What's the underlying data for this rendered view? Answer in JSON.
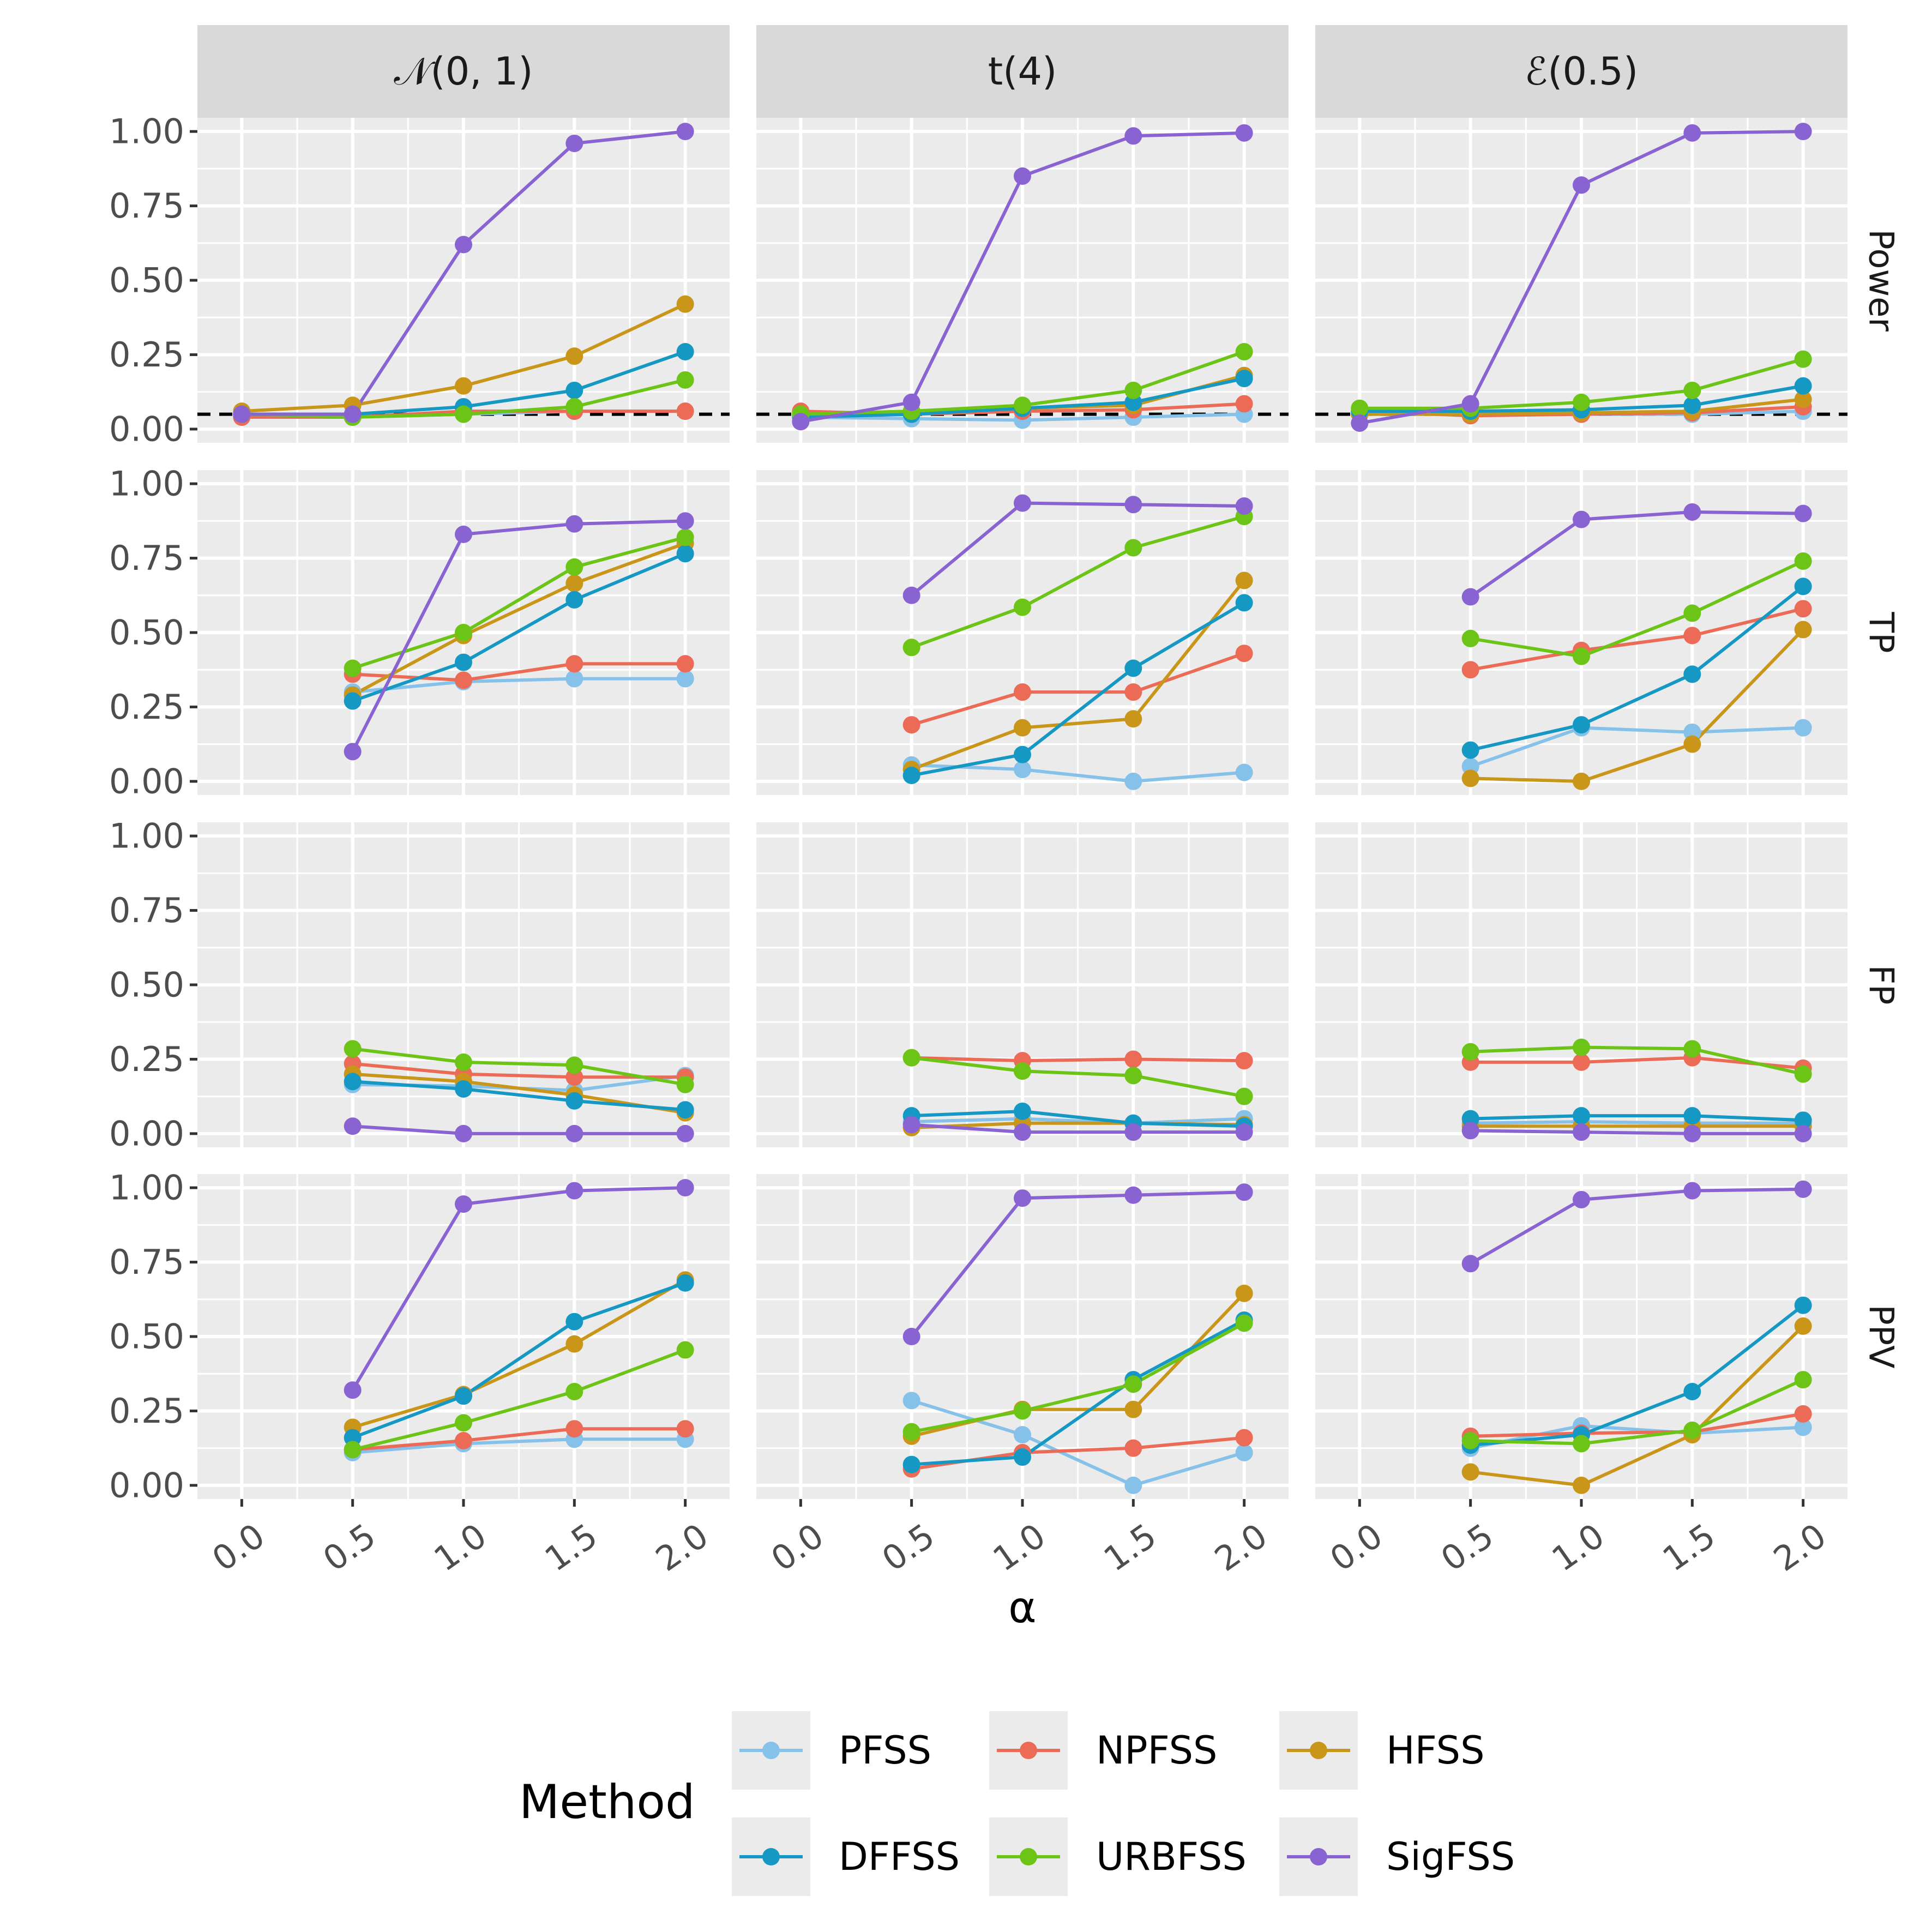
{
  "chart_data": {
    "type": "line",
    "xlabel": "α",
    "x": [
      0.0,
      0.5,
      1.0,
      1.5,
      2.0
    ],
    "x_tick_labels": [
      "0.0",
      "0.5",
      "1.0",
      "1.5",
      "2.0"
    ],
    "ylim": [
      0,
      1
    ],
    "y_tick_labels": [
      "0.00",
      "0.25",
      "0.50",
      "0.75",
      "1.00"
    ],
    "columns": [
      "𝒩(0, 1)",
      "t(4)",
      "ℰ(0.5)"
    ],
    "rows": [
      "Power",
      "TP",
      "FP",
      "PPV"
    ],
    "reference_line": {
      "row": "Power",
      "y": 0.05,
      "style": "dashed"
    },
    "legend": {
      "title": "Method",
      "position": "bottom"
    },
    "methods": [
      {
        "name": "PFSS",
        "color": "#85C1E9"
      },
      {
        "name": "NPFSS",
        "color": "#EC6B56"
      },
      {
        "name": "HFSS",
        "color": "#C9961A"
      },
      {
        "name": "DFFSS",
        "color": "#1598C3"
      },
      {
        "name": "URBFSS",
        "color": "#6CC417"
      },
      {
        "name": "SigFSS",
        "color": "#8A63D2"
      }
    ],
    "panels": {
      "Power": [
        {
          "PFSS": [
            0.05,
            0.04,
            0.05,
            0.06,
            0.06
          ],
          "NPFSS": [
            0.04,
            0.04,
            0.06,
            0.06,
            0.06
          ],
          "HFSS": [
            0.06,
            0.08,
            0.145,
            0.245,
            0.42
          ],
          "DFFSS": [
            0.05,
            0.05,
            0.075,
            0.13,
            0.26
          ],
          "URBFSS": [
            0.05,
            0.04,
            0.05,
            0.075,
            0.165
          ],
          "SigFSS": [
            0.05,
            0.05,
            0.62,
            0.96,
            1.0
          ]
        },
        {
          "PFSS": [
            0.04,
            0.035,
            0.03,
            0.04,
            0.05
          ],
          "NPFSS": [
            0.06,
            0.05,
            0.06,
            0.065,
            0.085
          ],
          "HFSS": [
            0.05,
            0.06,
            0.07,
            0.08,
            0.18
          ],
          "DFFSS": [
            0.04,
            0.05,
            0.07,
            0.09,
            0.17
          ],
          "URBFSS": [
            0.05,
            0.06,
            0.08,
            0.13,
            0.26
          ],
          "SigFSS": [
            0.025,
            0.09,
            0.85,
            0.985,
            0.995
          ]
        },
        {
          "PFSS": [
            0.05,
            0.05,
            0.05,
            0.05,
            0.06
          ],
          "NPFSS": [
            0.06,
            0.045,
            0.05,
            0.055,
            0.075
          ],
          "HFSS": [
            0.05,
            0.05,
            0.055,
            0.06,
            0.1
          ],
          "DFFSS": [
            0.06,
            0.06,
            0.065,
            0.08,
            0.145
          ],
          "URBFSS": [
            0.07,
            0.07,
            0.09,
            0.13,
            0.235
          ],
          "SigFSS": [
            0.02,
            0.085,
            0.82,
            0.995,
            1.0
          ]
        }
      ],
      "TP": [
        {
          "PFSS": [
            null,
            0.3,
            0.335,
            0.345,
            0.345
          ],
          "NPFSS": [
            null,
            0.36,
            0.34,
            0.395,
            0.395
          ],
          "HFSS": [
            null,
            0.29,
            0.49,
            0.665,
            0.8
          ],
          "DFFSS": [
            null,
            0.27,
            0.4,
            0.61,
            0.765
          ],
          "URBFSS": [
            null,
            0.38,
            0.5,
            0.72,
            0.82
          ],
          "SigFSS": [
            null,
            0.1,
            0.83,
            0.865,
            0.875
          ]
        },
        {
          "PFSS": [
            null,
            0.055,
            0.04,
            0.0,
            0.03
          ],
          "NPFSS": [
            null,
            0.19,
            0.3,
            0.3,
            0.43
          ],
          "HFSS": [
            null,
            0.04,
            0.18,
            0.21,
            0.675
          ],
          "DFFSS": [
            null,
            0.02,
            0.09,
            0.38,
            0.6
          ],
          "URBFSS": [
            null,
            0.45,
            0.585,
            0.785,
            0.89
          ],
          "SigFSS": [
            null,
            0.625,
            0.935,
            0.93,
            0.925
          ]
        },
        {
          "PFSS": [
            null,
            0.05,
            0.18,
            0.165,
            0.18
          ],
          "NPFSS": [
            null,
            0.375,
            0.44,
            0.49,
            0.58
          ],
          "HFSS": [
            null,
            0.01,
            0.0,
            0.125,
            0.51
          ],
          "DFFSS": [
            null,
            0.105,
            0.19,
            0.36,
            0.655
          ],
          "URBFSS": [
            null,
            0.48,
            0.42,
            0.565,
            0.74
          ],
          "SigFSS": [
            null,
            0.62,
            0.88,
            0.905,
            0.9
          ]
        }
      ],
      "FP": [
        {
          "PFSS": [
            null,
            0.165,
            0.16,
            0.145,
            0.195
          ],
          "NPFSS": [
            null,
            0.235,
            0.2,
            0.19,
            0.19
          ],
          "HFSS": [
            null,
            0.2,
            0.175,
            0.13,
            0.07
          ],
          "DFFSS": [
            null,
            0.175,
            0.15,
            0.11,
            0.08
          ],
          "URBFSS": [
            null,
            0.285,
            0.24,
            0.23,
            0.165
          ],
          "SigFSS": [
            null,
            0.025,
            0.0,
            0.0,
            0.0
          ]
        },
        {
          "PFSS": [
            null,
            0.04,
            0.05,
            0.035,
            0.05
          ],
          "NPFSS": [
            null,
            0.255,
            0.245,
            0.25,
            0.245
          ],
          "HFSS": [
            null,
            0.02,
            0.035,
            0.035,
            0.03
          ],
          "DFFSS": [
            null,
            0.06,
            0.075,
            0.035,
            0.025
          ],
          "URBFSS": [
            null,
            0.255,
            0.21,
            0.195,
            0.125
          ],
          "SigFSS": [
            null,
            0.03,
            0.005,
            0.005,
            0.005
          ]
        },
        {
          "PFSS": [
            null,
            0.035,
            0.04,
            0.035,
            0.035
          ],
          "NPFSS": [
            null,
            0.24,
            0.24,
            0.255,
            0.22
          ],
          "HFSS": [
            null,
            0.025,
            0.025,
            0.025,
            0.025
          ],
          "DFFSS": [
            null,
            0.05,
            0.06,
            0.06,
            0.045
          ],
          "URBFSS": [
            null,
            0.275,
            0.29,
            0.285,
            0.2
          ],
          "SigFSS": [
            null,
            0.01,
            0.005,
            0.0,
            0.0
          ]
        }
      ],
      "PPV": [
        {
          "PFSS": [
            null,
            0.11,
            0.14,
            0.155,
            0.155
          ],
          "NPFSS": [
            null,
            0.12,
            0.15,
            0.19,
            0.19
          ],
          "HFSS": [
            null,
            0.195,
            0.305,
            0.475,
            0.69
          ],
          "DFFSS": [
            null,
            0.16,
            0.3,
            0.55,
            0.68
          ],
          "URBFSS": [
            null,
            0.12,
            0.21,
            0.315,
            0.455
          ],
          "SigFSS": [
            null,
            0.32,
            0.945,
            0.99,
            1.0
          ]
        },
        {
          "PFSS": [
            null,
            0.285,
            0.17,
            0.0,
            0.11
          ],
          "NPFSS": [
            null,
            0.055,
            0.11,
            0.125,
            0.16
          ],
          "HFSS": [
            null,
            0.165,
            0.255,
            0.255,
            0.645
          ],
          "DFFSS": [
            null,
            0.07,
            0.095,
            0.355,
            0.555
          ],
          "URBFSS": [
            null,
            0.18,
            0.25,
            0.34,
            0.545
          ],
          "SigFSS": [
            null,
            0.5,
            0.965,
            0.975,
            0.985
          ]
        },
        {
          "PFSS": [
            null,
            0.125,
            0.2,
            0.175,
            0.195
          ],
          "NPFSS": [
            null,
            0.165,
            0.175,
            0.18,
            0.24
          ],
          "HFSS": [
            null,
            0.045,
            0.0,
            0.17,
            0.535
          ],
          "DFFSS": [
            null,
            0.135,
            0.17,
            0.315,
            0.605
          ],
          "URBFSS": [
            null,
            0.15,
            0.14,
            0.185,
            0.355
          ],
          "SigFSS": [
            null,
            0.745,
            0.96,
            0.99,
            0.995
          ]
        }
      ]
    }
  }
}
